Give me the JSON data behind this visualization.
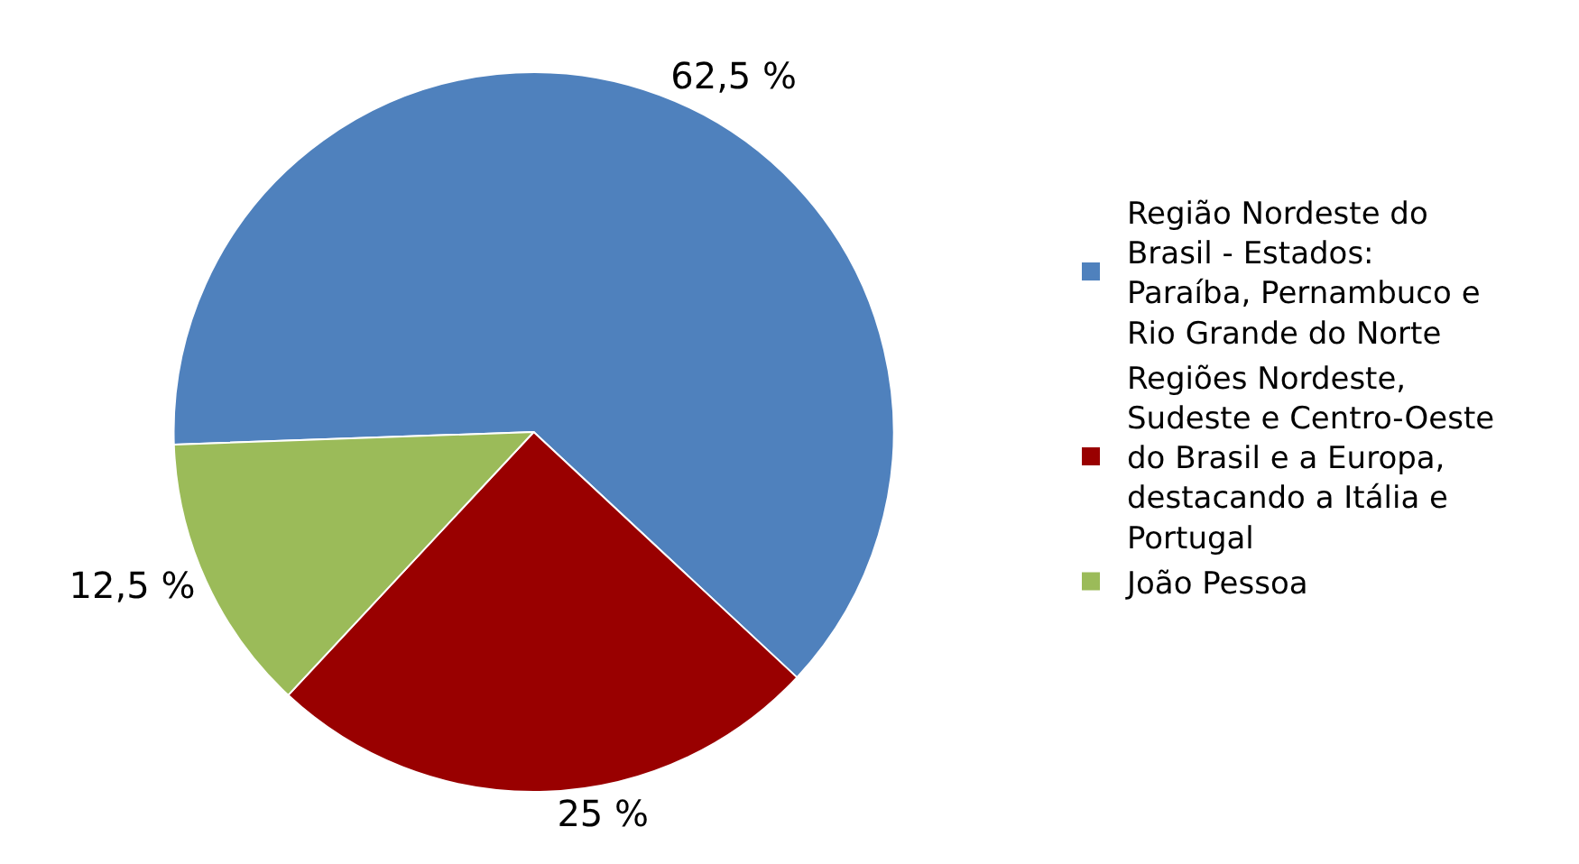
{
  "chart_data": {
    "type": "pie",
    "categories": [
      "Região Nordeste do Brasil - Estados: Paraíba, Pernambuco e Rio Grande do Norte",
      "Regiões Nordeste, Sudeste e Centro-Oeste do Brasil e a Europa, destacando a Itália e Portugal",
      "João Pessoa"
    ],
    "values": [
      62.5,
      25,
      12.5
    ],
    "colors": [
      "#4f81bd",
      "#990000",
      "#9bbb59"
    ],
    "value_labels": [
      "62,5 %",
      "25 %",
      "12,5 %"
    ],
    "legend": "right"
  }
}
